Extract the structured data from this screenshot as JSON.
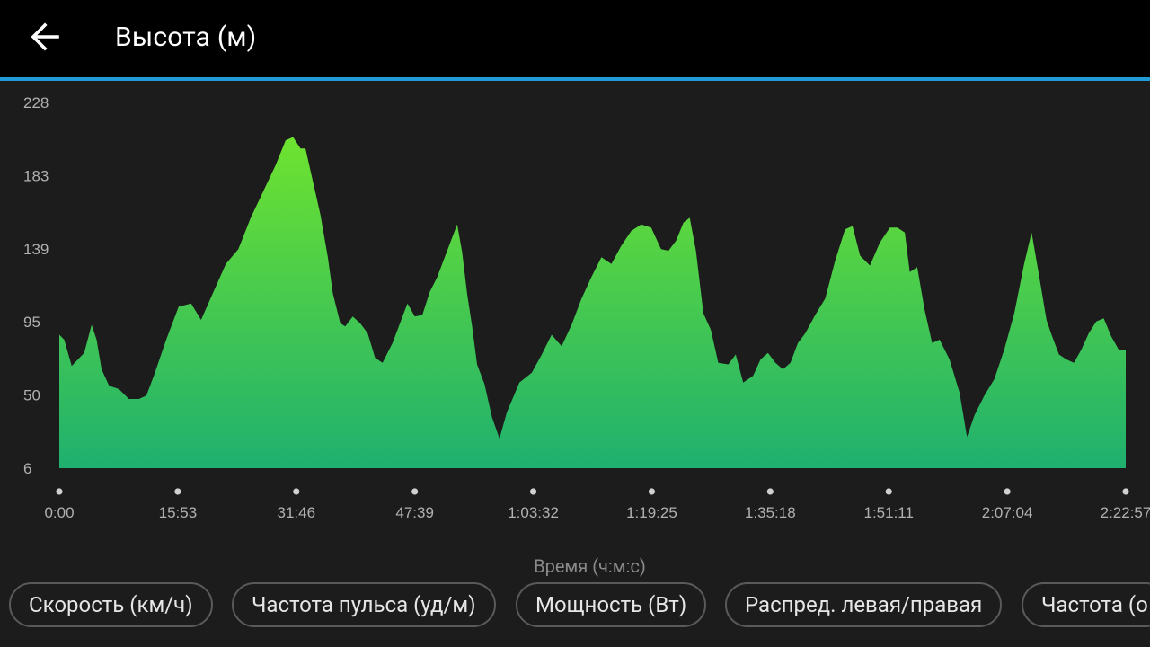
{
  "header": {
    "back_icon": "arrow-left-icon",
    "title": "Высота (м)"
  },
  "chart_data": {
    "type": "area",
    "title": "Высота (м)",
    "xlabel": "Время (ч:м:с)",
    "ylabel": "",
    "y_ticks": [
      "228",
      "183",
      "139",
      "95",
      "50",
      "6"
    ],
    "ylim": [
      6,
      228
    ],
    "x_ticks": [
      "0:00",
      "15:53",
      "31:46",
      "47:39",
      "1:03:32",
      "1:19:25",
      "1:35:18",
      "1:51:11",
      "2:07:04",
      "2:22:57"
    ],
    "x_unit": "seconds",
    "x_range_seconds": [
      0,
      8577
    ],
    "series": [
      {
        "color_top": "#6ee32f",
        "color_bottom": "#1fb06f",
        "points": [
          [
            0,
            87
          ],
          [
            40,
            84
          ],
          [
            100,
            68
          ],
          [
            200,
            76
          ],
          [
            260,
            93
          ],
          [
            300,
            84
          ],
          [
            340,
            66
          ],
          [
            400,
            56
          ],
          [
            480,
            54
          ],
          [
            560,
            48
          ],
          [
            640,
            48
          ],
          [
            700,
            50
          ],
          [
            760,
            62
          ],
          [
            860,
            84
          ],
          [
            960,
            104
          ],
          [
            1060,
            106
          ],
          [
            1140,
            96
          ],
          [
            1240,
            113
          ],
          [
            1340,
            130
          ],
          [
            1440,
            139
          ],
          [
            1540,
            158
          ],
          [
            1640,
            174
          ],
          [
            1740,
            190
          ],
          [
            1820,
            205
          ],
          [
            1880,
            207
          ],
          [
            1940,
            200
          ],
          [
            1980,
            200
          ],
          [
            2040,
            180
          ],
          [
            2100,
            160
          ],
          [
            2160,
            134
          ],
          [
            2200,
            112
          ],
          [
            2260,
            94
          ],
          [
            2300,
            92
          ],
          [
            2360,
            98
          ],
          [
            2420,
            94
          ],
          [
            2480,
            88
          ],
          [
            2540,
            73
          ],
          [
            2600,
            70
          ],
          [
            2680,
            82
          ],
          [
            2740,
            94
          ],
          [
            2800,
            106
          ],
          [
            2860,
            98
          ],
          [
            2920,
            99
          ],
          [
            2980,
            113
          ],
          [
            3040,
            122
          ],
          [
            3100,
            134
          ],
          [
            3160,
            146
          ],
          [
            3200,
            154
          ],
          [
            3240,
            137
          ],
          [
            3280,
            112
          ],
          [
            3320,
            92
          ],
          [
            3360,
            69
          ],
          [
            3420,
            57
          ],
          [
            3480,
            37
          ],
          [
            3540,
            24
          ],
          [
            3600,
            40
          ],
          [
            3700,
            58
          ],
          [
            3800,
            64
          ],
          [
            3880,
            75
          ],
          [
            3960,
            87
          ],
          [
            4040,
            80
          ],
          [
            4120,
            93
          ],
          [
            4200,
            109
          ],
          [
            4280,
            122
          ],
          [
            4360,
            134
          ],
          [
            4440,
            130
          ],
          [
            4520,
            141
          ],
          [
            4600,
            150
          ],
          [
            4680,
            154
          ],
          [
            4760,
            152
          ],
          [
            4840,
            139
          ],
          [
            4900,
            138
          ],
          [
            4960,
            144
          ],
          [
            5020,
            155
          ],
          [
            5070,
            158
          ],
          [
            5120,
            138
          ],
          [
            5180,
            100
          ],
          [
            5240,
            90
          ],
          [
            5300,
            70
          ],
          [
            5380,
            69
          ],
          [
            5440,
            75
          ],
          [
            5500,
            58
          ],
          [
            5580,
            62
          ],
          [
            5640,
            72
          ],
          [
            5700,
            76
          ],
          [
            5760,
            70
          ],
          [
            5820,
            66
          ],
          [
            5880,
            70
          ],
          [
            5940,
            82
          ],
          [
            6000,
            88
          ],
          [
            6080,
            99
          ],
          [
            6160,
            109
          ],
          [
            6240,
            132
          ],
          [
            6320,
            151
          ],
          [
            6380,
            153
          ],
          [
            6440,
            135
          ],
          [
            6520,
            129
          ],
          [
            6600,
            143
          ],
          [
            6680,
            152
          ],
          [
            6740,
            152
          ],
          [
            6800,
            149
          ],
          [
            6840,
            125
          ],
          [
            6900,
            128
          ],
          [
            6960,
            102
          ],
          [
            7020,
            82
          ],
          [
            7080,
            84
          ],
          [
            7160,
            72
          ],
          [
            7240,
            52
          ],
          [
            7300,
            25
          ],
          [
            7360,
            38
          ],
          [
            7440,
            50
          ],
          [
            7520,
            60
          ],
          [
            7600,
            78
          ],
          [
            7680,
            100
          ],
          [
            7760,
            130
          ],
          [
            7820,
            149
          ],
          [
            7880,
            123
          ],
          [
            7940,
            96
          ],
          [
            7980,
            87
          ],
          [
            8040,
            75
          ],
          [
            8100,
            72
          ],
          [
            8160,
            70
          ],
          [
            8220,
            78
          ],
          [
            8280,
            88
          ],
          [
            8340,
            95
          ],
          [
            8400,
            97
          ],
          [
            8460,
            86
          ],
          [
            8520,
            78
          ]
        ]
      }
    ],
    "grid": false,
    "legend": "none"
  },
  "chips": [
    "Скорость (км/ч)",
    "Частота пульса (уд/м)",
    "Мощность (Вт)",
    "Распред. левая/правая",
    "Частота (о"
  ]
}
